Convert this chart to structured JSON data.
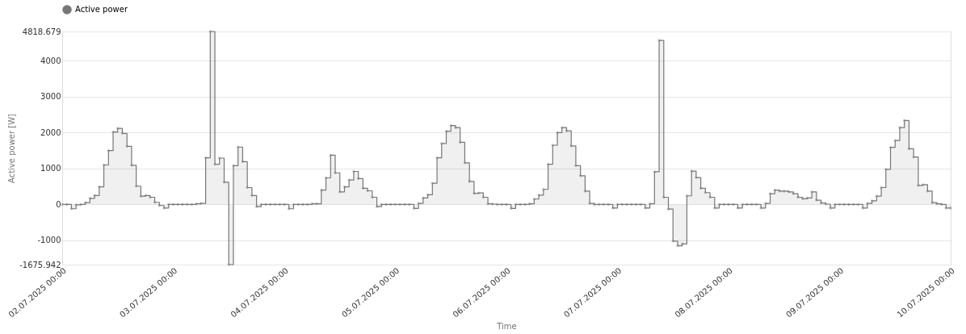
{
  "chart_data": {
    "type": "step",
    "xlabel": "Time",
    "ylabel": "Active power [W]",
    "x": [
      "2025-07-02T00:00",
      "2025-07-02T01:00",
      "2025-07-02T02:00",
      "2025-07-02T03:00",
      "2025-07-02T04:00",
      "2025-07-02T05:00",
      "2025-07-02T06:00",
      "2025-07-02T07:00",
      "2025-07-02T08:00",
      "2025-07-02T09:00",
      "2025-07-02T10:00",
      "2025-07-02T11:00",
      "2025-07-02T12:00",
      "2025-07-02T13:00",
      "2025-07-02T14:00",
      "2025-07-02T15:00",
      "2025-07-02T16:00",
      "2025-07-02T17:00",
      "2025-07-02T18:00",
      "2025-07-02T19:00",
      "2025-07-02T20:00",
      "2025-07-02T21:00",
      "2025-07-02T22:00",
      "2025-07-02T23:00",
      "2025-07-03T00:00",
      "2025-07-03T01:00",
      "2025-07-03T02:00",
      "2025-07-03T03:00",
      "2025-07-03T04:00",
      "2025-07-03T05:00",
      "2025-07-03T06:00",
      "2025-07-03T07:00",
      "2025-07-03T08:00",
      "2025-07-03T09:00",
      "2025-07-03T10:00",
      "2025-07-03T11:00",
      "2025-07-03T12:00",
      "2025-07-03T13:00",
      "2025-07-03T14:00",
      "2025-07-03T15:00",
      "2025-07-03T16:00",
      "2025-07-03T17:00",
      "2025-07-03T18:00",
      "2025-07-03T19:00",
      "2025-07-03T20:00",
      "2025-07-03T21:00",
      "2025-07-03T22:00",
      "2025-07-03T23:00",
      "2025-07-04T00:00",
      "2025-07-04T01:00",
      "2025-07-04T02:00",
      "2025-07-04T03:00",
      "2025-07-04T04:00",
      "2025-07-04T05:00",
      "2025-07-04T06:00",
      "2025-07-04T07:00",
      "2025-07-04T08:00",
      "2025-07-04T09:00",
      "2025-07-04T10:00",
      "2025-07-04T11:00",
      "2025-07-04T12:00",
      "2025-07-04T13:00",
      "2025-07-04T14:00",
      "2025-07-04T15:00",
      "2025-07-04T16:00",
      "2025-07-04T17:00",
      "2025-07-04T18:00",
      "2025-07-04T19:00",
      "2025-07-04T20:00",
      "2025-07-04T21:00",
      "2025-07-04T22:00",
      "2025-07-04T23:00",
      "2025-07-05T00:00",
      "2025-07-05T01:00",
      "2025-07-05T02:00",
      "2025-07-05T03:00",
      "2025-07-05T04:00",
      "2025-07-05T05:00",
      "2025-07-05T06:00",
      "2025-07-05T07:00",
      "2025-07-05T08:00",
      "2025-07-05T09:00",
      "2025-07-05T10:00",
      "2025-07-05T11:00",
      "2025-07-05T12:00",
      "2025-07-05T13:00",
      "2025-07-05T14:00",
      "2025-07-05T15:00",
      "2025-07-05T16:00",
      "2025-07-05T17:00",
      "2025-07-05T18:00",
      "2025-07-05T19:00",
      "2025-07-05T20:00",
      "2025-07-05T21:00",
      "2025-07-05T22:00",
      "2025-07-05T23:00",
      "2025-07-06T00:00",
      "2025-07-06T01:00",
      "2025-07-06T02:00",
      "2025-07-06T03:00",
      "2025-07-06T04:00",
      "2025-07-06T05:00",
      "2025-07-06T06:00",
      "2025-07-06T07:00",
      "2025-07-06T08:00",
      "2025-07-06T09:00",
      "2025-07-06T10:00",
      "2025-07-06T11:00",
      "2025-07-06T12:00",
      "2025-07-06T13:00",
      "2025-07-06T14:00",
      "2025-07-06T15:00",
      "2025-07-06T16:00",
      "2025-07-06T17:00",
      "2025-07-06T18:00",
      "2025-07-06T19:00",
      "2025-07-06T20:00",
      "2025-07-06T21:00",
      "2025-07-06T22:00",
      "2025-07-06T23:00",
      "2025-07-07T00:00",
      "2025-07-07T01:00",
      "2025-07-07T02:00",
      "2025-07-07T03:00",
      "2025-07-07T04:00",
      "2025-07-07T05:00",
      "2025-07-07T06:00",
      "2025-07-07T07:00",
      "2025-07-07T08:00",
      "2025-07-07T09:00",
      "2025-07-07T10:00",
      "2025-07-07T11:00",
      "2025-07-07T12:00",
      "2025-07-07T13:00",
      "2025-07-07T14:00",
      "2025-07-07T15:00",
      "2025-07-07T16:00",
      "2025-07-07T17:00",
      "2025-07-07T18:00",
      "2025-07-07T19:00",
      "2025-07-07T20:00",
      "2025-07-07T21:00",
      "2025-07-07T22:00",
      "2025-07-07T23:00",
      "2025-07-08T00:00",
      "2025-07-08T01:00",
      "2025-07-08T02:00",
      "2025-07-08T03:00",
      "2025-07-08T04:00",
      "2025-07-08T05:00",
      "2025-07-08T06:00",
      "2025-07-08T07:00",
      "2025-07-08T08:00",
      "2025-07-08T09:00",
      "2025-07-08T10:00",
      "2025-07-08T11:00",
      "2025-07-08T12:00",
      "2025-07-08T13:00",
      "2025-07-08T14:00",
      "2025-07-08T15:00",
      "2025-07-08T16:00",
      "2025-07-08T17:00",
      "2025-07-08T18:00",
      "2025-07-08T19:00",
      "2025-07-08T20:00",
      "2025-07-08T21:00",
      "2025-07-08T22:00",
      "2025-07-08T23:00",
      "2025-07-09T00:00",
      "2025-07-09T01:00",
      "2025-07-09T02:00",
      "2025-07-09T03:00",
      "2025-07-09T04:00",
      "2025-07-09T05:00",
      "2025-07-09T06:00",
      "2025-07-09T07:00",
      "2025-07-09T08:00",
      "2025-07-09T09:00",
      "2025-07-09T10:00",
      "2025-07-09T11:00",
      "2025-07-09T12:00",
      "2025-07-09T13:00",
      "2025-07-09T14:00",
      "2025-07-09T15:00",
      "2025-07-09T16:00",
      "2025-07-09T17:00",
      "2025-07-09T18:00",
      "2025-07-09T19:00",
      "2025-07-09T20:00",
      "2025-07-09T21:00",
      "2025-07-09T22:00",
      "2025-07-09T23:00",
      "2025-07-10T00:00"
    ],
    "series": [
      {
        "name": "Active power",
        "color": "#777777",
        "values": [
          0,
          0,
          -120,
          -10,
          0,
          50,
          170,
          250,
          490,
          1100,
          1500,
          2020,
          2120,
          1980,
          1620,
          1090,
          510,
          230,
          250,
          200,
          60,
          -30,
          -100,
          0,
          0,
          0,
          0,
          0,
          0,
          20,
          30,
          1300,
          4818.679,
          1120,
          1290,
          620,
          -1675.942,
          1080,
          1600,
          1190,
          470,
          250,
          -60,
          0,
          0,
          0,
          0,
          0,
          0,
          -120,
          0,
          0,
          0,
          0,
          20,
          20,
          400,
          740,
          1370,
          880,
          350,
          490,
          680,
          920,
          720,
          450,
          380,
          200,
          -60,
          0,
          0,
          0,
          0,
          0,
          0,
          0,
          -110,
          30,
          180,
          270,
          590,
          1300,
          1700,
          2040,
          2200,
          2140,
          1730,
          1160,
          640,
          310,
          320,
          200,
          20,
          10,
          0,
          0,
          0,
          -110,
          0,
          0,
          0,
          20,
          150,
          260,
          420,
          1120,
          1650,
          2000,
          2140,
          2050,
          1630,
          1080,
          800,
          370,
          30,
          0,
          0,
          0,
          0,
          -100,
          0,
          0,
          0,
          0,
          0,
          0,
          -100,
          20,
          910,
          4570,
          200,
          -130,
          -1020,
          -1150,
          -1100,
          240,
          930,
          750,
          450,
          330,
          200,
          -100,
          0,
          0,
          0,
          0,
          -100,
          0,
          0,
          0,
          0,
          -100,
          30,
          300,
          400,
          370,
          370,
          350,
          300,
          200,
          160,
          180,
          350,
          120,
          40,
          10,
          -100,
          0,
          0,
          0,
          0,
          0,
          0,
          -100,
          30,
          100,
          230,
          470,
          980,
          1590,
          1780,
          2140,
          2340,
          1550,
          1320,
          530,
          550,
          370,
          50,
          20,
          0,
          -100,
          -100
        ]
      }
    ],
    "xlim": [
      "2025-07-02T00:00",
      "2025-07-10T00:00"
    ],
    "xticks": [
      {
        "value": "2025-07-02T00:00",
        "label": "02.07.2025 00:00"
      },
      {
        "value": "2025-07-03T00:00",
        "label": "03.07.2025 00:00"
      },
      {
        "value": "2025-07-04T00:00",
        "label": "04.07.2025 00:00"
      },
      {
        "value": "2025-07-05T00:00",
        "label": "05.07.2025 00:00"
      },
      {
        "value": "2025-07-06T00:00",
        "label": "06.07.2025 00:00"
      },
      {
        "value": "2025-07-07T00:00",
        "label": "07.07.2025 00:00"
      },
      {
        "value": "2025-07-08T00:00",
        "label": "08.07.2025 00:00"
      },
      {
        "value": "2025-07-09T00:00",
        "label": "09.07.2025 00:00"
      },
      {
        "value": "2025-07-10T00:00",
        "label": "10.07.2025 00:00"
      }
    ],
    "ylim": [
      -1675.942,
      4818.679
    ],
    "yticks": [
      -1675.942,
      -1000,
      0,
      1000,
      2000,
      3000,
      4000,
      4818.679
    ],
    "grid": "y",
    "legend": "top",
    "marker": "circle",
    "line_style": "solid"
  }
}
